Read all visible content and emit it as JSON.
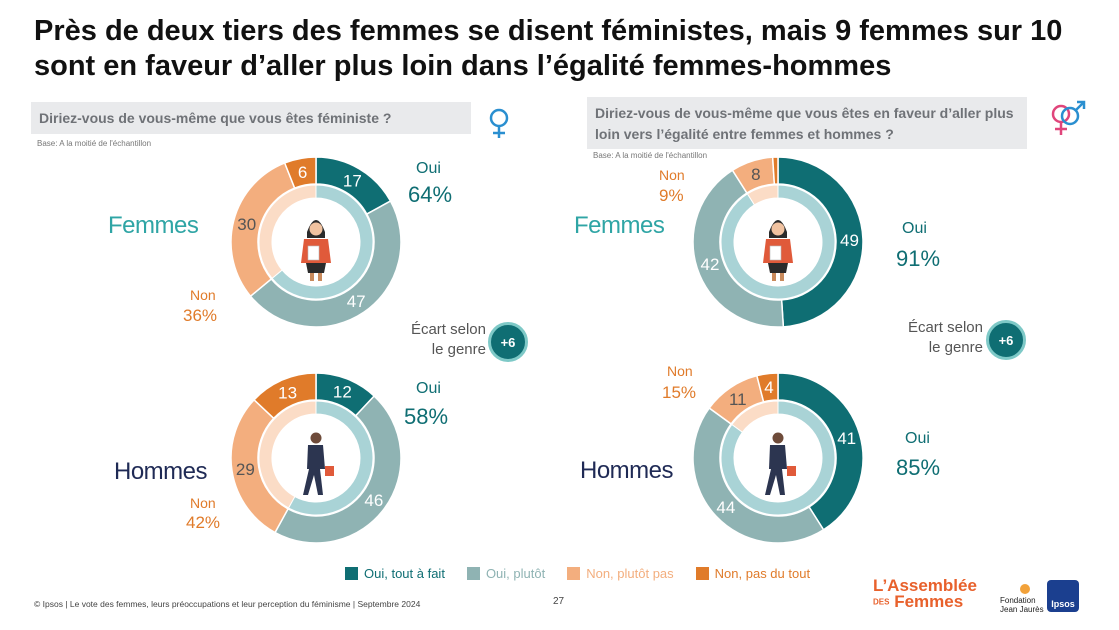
{
  "title": "Près de deux tiers des femmes se disent féministes, mais 9 femmes sur 10 sont en faveur d’aller plus loin dans l’égalité femmes-hommes",
  "colors": {
    "oui_tout_a_fait": "#0f6e73",
    "oui_plutot": "#8fb3b3",
    "non_plutot_pas": "#f3ae7e",
    "non_pas_du_tout": "#e07b2a",
    "inner_oui": "#a9d3d6",
    "inner_non": "#fbdcc6"
  },
  "icons": {
    "female": "female-symbol-icon",
    "male_female": "male-female-symbol-icon",
    "woman": "woman-figure-icon",
    "man": "man-figure-icon"
  },
  "panels": [
    {
      "question": "Diriez-vous de vous-même que vous êtes féministe ?",
      "base": "Base: A la moitié de l'échantillon",
      "ecart": {
        "line1": "Écart selon",
        "line2": "le genre",
        "value": "+6"
      }
    },
    {
      "question": "Diriez-vous de vous-même que vous êtes en faveur d’aller plus loin vers l’égalité entre femmes et hommes ?",
      "base": "Base: A la moitié de l'échantillon",
      "ecart": {
        "line1": "Écart selon",
        "line2": "le genre",
        "value": "+6"
      }
    }
  ],
  "labels": {
    "oui": "Oui",
    "non": "Non"
  },
  "chart_data": [
    {
      "type": "pie",
      "question": "Diriez-vous de vous-même que vous êtes féministe ?",
      "group": "Femmes",
      "categories": [
        "Oui, tout à fait",
        "Oui, plutôt",
        "Non, plutôt pas",
        "Non, pas du tout"
      ],
      "values": [
        17,
        47,
        30,
        6
      ],
      "oui_total": "64%",
      "non_total": "36%"
    },
    {
      "type": "pie",
      "question": "Diriez-vous de vous-même que vous êtes féministe ?",
      "group": "Hommes",
      "categories": [
        "Oui, tout à fait",
        "Oui, plutôt",
        "Non, plutôt pas",
        "Non, pas du tout"
      ],
      "values": [
        12,
        46,
        29,
        13
      ],
      "oui_total": "58%",
      "non_total": "42%"
    },
    {
      "type": "pie",
      "question": "Diriez-vous de vous-même que vous êtes en faveur d’aller plus loin vers l’égalité entre femmes et hommes ?",
      "group": "Femmes",
      "categories": [
        "Oui, tout à fait",
        "Oui, plutôt",
        "Non, plutôt pas",
        "Non, pas du tout"
      ],
      "values": [
        49,
        42,
        8,
        1
      ],
      "oui_total": "91%",
      "non_total": "9%"
    },
    {
      "type": "pie",
      "question": "Diriez-vous de vous-même que vous êtes en faveur d’aller plus loin vers l’égalité entre femmes et hommes ?",
      "group": "Hommes",
      "categories": [
        "Oui, tout à fait",
        "Oui, plutôt",
        "Non, plutôt pas",
        "Non, pas du tout"
      ],
      "values": [
        41,
        44,
        11,
        4
      ],
      "oui_total": "85%",
      "non_total": "15%"
    }
  ],
  "legend": [
    "Oui, tout à fait",
    "Oui, plutôt",
    "Non, plutôt pas",
    "Non, pas du tout"
  ],
  "footer": "© Ipsos | Le vote des femmes, leurs préoccupations et leur perception du féminisme | Septembre 2024",
  "page_number": "27",
  "logos": {
    "assemblee_line1": "L’Assemblée",
    "assemblee_des": "DES",
    "assemblee_line2": "Femmes",
    "jaures_line1": "Fondation",
    "jaures_line2": "Jean Jaurès",
    "ipsos": "Ipsos"
  }
}
